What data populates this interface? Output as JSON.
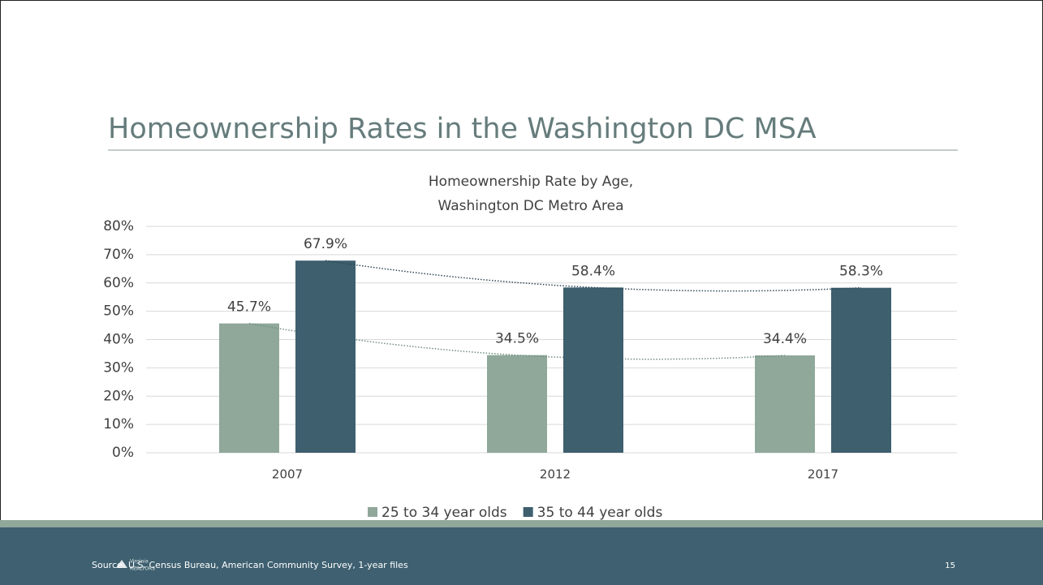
{
  "slide": {
    "title": "Homeownership Rates in the Washington DC MSA",
    "source": "Source: U.S. Census Bureau, American Community Survey, 1-year files",
    "logo": [
      "Virginia",
      "REALTORS"
    ],
    "page": "15"
  },
  "chart_data": {
    "type": "bar",
    "title": [
      "Homeownership Rate by Age,",
      "Washington DC Metro Area"
    ],
    "categories": [
      "2007",
      "2012",
      "2017"
    ],
    "series": [
      {
        "name": "25 to 34 year olds",
        "color": "#8fa89a",
        "trend_color": "#6f8f80",
        "values": [
          45.7,
          34.5,
          34.4
        ],
        "value_labels": [
          "45.7%",
          "34.5%",
          "34.4%"
        ]
      },
      {
        "name": "35 to 44 year olds",
        "color": "#3d5f6e",
        "trend_color": "#2c4756",
        "values": [
          67.9,
          58.4,
          58.3
        ],
        "value_labels": [
          "67.9%",
          "58.4%",
          "58.3%"
        ]
      }
    ],
    "ylim": [
      0,
      80
    ],
    "yticks": [
      {
        "value": 0,
        "label": "0%"
      },
      {
        "value": 10,
        "label": "10%"
      },
      {
        "value": 20,
        "label": "20%"
      },
      {
        "value": 30,
        "label": "30%"
      },
      {
        "value": 40,
        "label": "40%"
      },
      {
        "value": 50,
        "label": "50%"
      },
      {
        "value": 60,
        "label": "60%"
      },
      {
        "value": 70,
        "label": "70%"
      },
      {
        "value": 80,
        "label": "80%"
      }
    ],
    "grid": true,
    "trendline": true,
    "legend": "bottom"
  }
}
